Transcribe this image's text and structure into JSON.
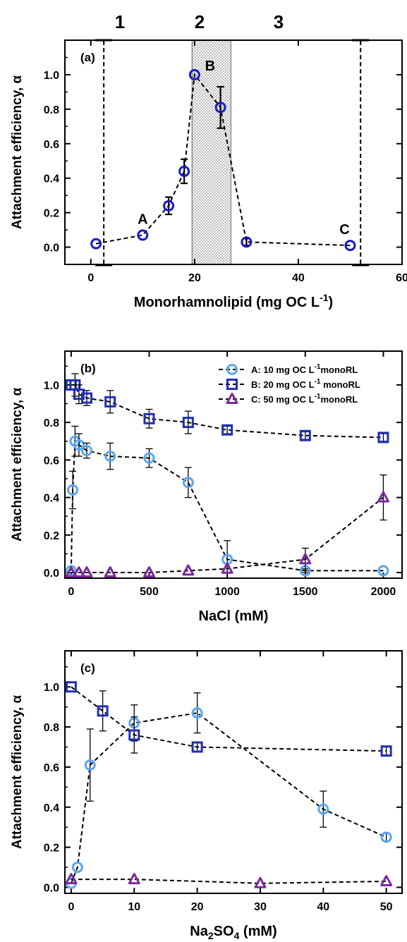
{
  "chart_data": [
    {
      "panel": "(a)",
      "type": "line",
      "xlabel": "Monorhamnolipid (mg OC L",
      "xlabel_sup": "-1",
      "xlabel_end": ")",
      "ylabel": "Attachment efficiency, α",
      "xlim": [
        -5,
        60
      ],
      "ylim": [
        -0.1,
        1.2
      ],
      "xticks": [
        0,
        20,
        40,
        60
      ],
      "yticks": [
        "0.0",
        "0.2",
        "0.4",
        "0.6",
        "0.8",
        "1.0"
      ],
      "region_labels": [
        "1",
        "2",
        "3"
      ],
      "shaded_band": [
        19.5,
        27
      ],
      "vlines": [
        2.5,
        52
      ],
      "point_labels": [
        {
          "text": "A",
          "x": 10,
          "y": 0.07
        },
        {
          "text": "B",
          "x": 20,
          "y": 1.0
        },
        {
          "text": "C",
          "x": 50,
          "y": 0.01
        }
      ],
      "series": [
        {
          "color": "#1a1ac8",
          "marker": "circle",
          "x": [
            1,
            10,
            15,
            18,
            20,
            25,
            30,
            50
          ],
          "y": [
            0.02,
            0.07,
            0.24,
            0.44,
            1.0,
            0.81,
            0.03,
            0.01
          ],
          "err": [
            0,
            0,
            0.05,
            0.07,
            0,
            0.12,
            0.02,
            0
          ]
        }
      ]
    },
    {
      "panel": "(b)",
      "type": "line",
      "xlabel": "NaCl (mM)",
      "ylabel": "Attachment efficiency, α",
      "xlim": [
        -40,
        2120
      ],
      "ylim": [
        -0.03,
        1.18
      ],
      "xticks": [
        0,
        500,
        1000,
        1500,
        2000
      ],
      "yticks": [
        "0.0",
        "0.2",
        "0.4",
        "0.6",
        "0.8",
        "1.0"
      ],
      "legend_position": "top-right",
      "series": [
        {
          "name": "A: 10 mg OC L-1monoRL",
          "legend_pre": "A: 10 mg OC L",
          "legend_sup": "-1",
          "legend_post": "monoRL",
          "color": "#5aa6f0",
          "marker": "circle",
          "x": [
            0,
            10,
            25,
            50,
            100,
            250,
            500,
            750,
            1000,
            1500,
            2000
          ],
          "y": [
            0.01,
            0.44,
            0.7,
            0.68,
            0.65,
            0.62,
            0.61,
            0.48,
            0.07,
            0.01,
            0.01
          ],
          "err": [
            0,
            0.1,
            0.08,
            0.06,
            0.04,
            0.07,
            0.05,
            0.08,
            0.1,
            0.01,
            0
          ]
        },
        {
          "name": "B: 20 mg OC L-1 monoRL",
          "legend_pre": "B: 20 mg OC L",
          "legend_sup": "-1",
          "legend_post": " monoRL",
          "color": "#1f2fb4",
          "marker": "square",
          "x": [
            0,
            25,
            50,
            100,
            250,
            500,
            750,
            1000,
            1500,
            2000
          ],
          "y": [
            1.0,
            1.0,
            0.95,
            0.93,
            0.91,
            0.82,
            0.8,
            0.76,
            0.73,
            0.72
          ],
          "err": [
            0,
            0.06,
            0.05,
            0.04,
            0.06,
            0.05,
            0.06,
            0.02,
            0.02,
            0.02
          ]
        },
        {
          "name": "C: 50 mg OC L-1monoRL",
          "legend_pre": "C: 50 mg OC L",
          "legend_sup": "-1",
          "legend_post": "monoRL",
          "color": "#7b2a9c",
          "marker": "triangle",
          "x": [
            0,
            50,
            100,
            250,
            500,
            750,
            1000,
            1500,
            2000
          ],
          "y": [
            0.0,
            0.0,
            0.0,
            0.0,
            0.0,
            0.01,
            0.02,
            0.07,
            0.4
          ],
          "err": [
            0,
            0,
            0,
            0,
            0,
            0,
            0,
            0.06,
            0.12
          ]
        }
      ]
    },
    {
      "panel": "(c)",
      "type": "line",
      "xlabel": "Na",
      "xlabel_sub1": "2",
      "xlabel_mid": "SO",
      "xlabel_sub2": "4",
      "xlabel_end": " (mM)",
      "ylabel": "Attachment efficiency, α",
      "xlim": [
        -1,
        52.5
      ],
      "ylim": [
        -0.03,
        1.18
      ],
      "xticks": [
        0,
        10,
        20,
        30,
        40,
        50
      ],
      "yticks": [
        "0.0",
        "0.2",
        "0.4",
        "0.6",
        "0.8",
        "1.0"
      ],
      "series": [
        {
          "color": "#5aa6f0",
          "marker": "circle",
          "x": [
            0,
            1,
            3,
            10,
            20,
            40,
            50
          ],
          "y": [
            0.02,
            0.1,
            0.61,
            0.82,
            0.87,
            0.39,
            0.25
          ],
          "err": [
            0,
            0,
            0.18,
            0.09,
            0.1,
            0.09,
            0.02
          ]
        },
        {
          "color": "#1f2fb4",
          "marker": "square",
          "x": [
            0,
            5,
            10,
            20,
            50
          ],
          "y": [
            1.0,
            0.88,
            0.76,
            0.7,
            0.68
          ],
          "err": [
            0,
            0.1,
            0.09,
            0.02,
            0.02
          ]
        },
        {
          "color": "#7b2a9c",
          "marker": "triangle",
          "x": [
            0,
            10,
            30,
            50
          ],
          "y": [
            0.04,
            0.04,
            0.02,
            0.03
          ],
          "err": [
            0,
            0,
            0,
            0
          ]
        }
      ]
    }
  ]
}
